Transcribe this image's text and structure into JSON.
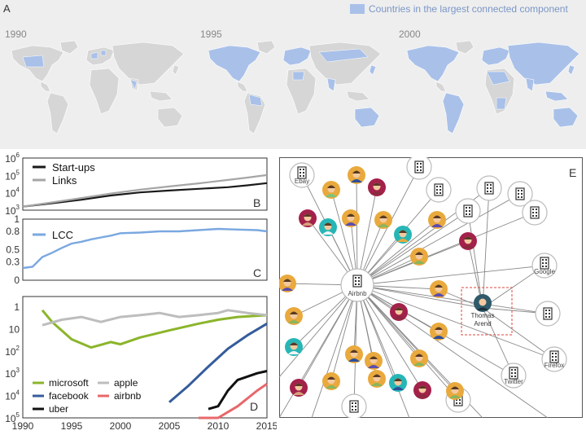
{
  "maps_panel": {
    "panel_label": "A",
    "legend_label": "Countries in the largest connected component",
    "legend_color": "#a9c1e9",
    "years": [
      "1990",
      "1995",
      "2000"
    ],
    "land_color": "#d6d6d6"
  },
  "chart_data": [
    {
      "panel_label": "B",
      "type": "line",
      "scale": "log",
      "ylim_exponents": [
        3,
        6
      ],
      "y_ticks": [
        {
          "mantissa": "10",
          "exp": "6"
        },
        {
          "mantissa": "10",
          "exp": "5"
        },
        {
          "mantissa": "10",
          "exp": "4"
        },
        {
          "mantissa": "10",
          "exp": "3"
        }
      ],
      "series": [
        {
          "name": "Start-ups",
          "color": "#1a1a1a",
          "x": [
            1990,
            1993,
            1996,
            1999,
            2002,
            2005,
            2008,
            2011,
            2013,
            2015
          ],
          "y": [
            1600,
            2500,
            4000,
            7000,
            10500,
            13500,
            17000,
            21000,
            27000,
            36000
          ]
        },
        {
          "name": "Links",
          "color": "#a6a6a6",
          "x": [
            1990,
            1993,
            1996,
            1999,
            2002,
            2005,
            2008,
            2011,
            2013,
            2015
          ],
          "y": [
            1600,
            2800,
            5000,
            9000,
            15000,
            23000,
            35000,
            55000,
            75000,
            105000
          ]
        }
      ]
    },
    {
      "panel_label": "C",
      "type": "line",
      "scale": "linear",
      "ylim": [
        0.0,
        1.0
      ],
      "y_ticks": [
        "1",
        "0.8",
        "0.5",
        "0.3",
        "0"
      ],
      "y_tick_values": [
        1.0,
        0.8,
        0.5,
        0.3,
        0.0
      ],
      "series": [
        {
          "name": "LCC",
          "color": "#7aa8e0",
          "x": [
            1990,
            1991,
            1992,
            1993,
            1994,
            1995,
            1996,
            1997,
            1998,
            1999,
            2000,
            2002,
            2004,
            2006,
            2008,
            2010,
            2012,
            2014,
            2015
          ],
          "y": [
            0.2,
            0.22,
            0.38,
            0.45,
            0.53,
            0.6,
            0.63,
            0.67,
            0.7,
            0.73,
            0.77,
            0.78,
            0.8,
            0.8,
            0.82,
            0.84,
            0.83,
            0.82,
            0.8
          ]
        }
      ]
    },
    {
      "panel_label": "D",
      "type": "line",
      "scale": "log-rank",
      "ylim_exponents": [
        0,
        5
      ],
      "y_ticks": [
        {
          "mantissa": "1",
          "exp": ""
        },
        {
          "mantissa": "10",
          "exp": ""
        },
        {
          "mantissa": "10",
          "exp": "2"
        },
        {
          "mantissa": "10",
          "exp": "3"
        },
        {
          "mantissa": "10",
          "exp": "4"
        },
        {
          "mantissa": "10",
          "exp": "5"
        }
      ],
      "x_ticks": [
        "1990",
        "1995",
        "2000",
        "2005",
        "2010",
        "2015"
      ],
      "xlim": [
        1990,
        2015
      ],
      "series": [
        {
          "name": "microsoft",
          "color": "#8bb52b",
          "x": [
            1992,
            1993,
            1995,
            1997,
            1999,
            2000,
            2002,
            2005,
            2008,
            2010,
            2012,
            2015
          ],
          "y": [
            1.5,
            5.0,
            30,
            70,
            40,
            50,
            25,
            12,
            6,
            4,
            3,
            2.5
          ]
        },
        {
          "name": "apple",
          "color": "#bdbdbd",
          "x": [
            1992,
            1994,
            1996,
            1998,
            2000,
            2002,
            2004,
            2006,
            2008,
            2010,
            2011,
            2013,
            2015
          ],
          "y": [
            7,
            4,
            3,
            5,
            3,
            2.5,
            2.0,
            3,
            2.5,
            2.0,
            1.5,
            2.0,
            2.5
          ]
        },
        {
          "name": "facebook",
          "color": "#355c9c",
          "x": [
            2005,
            2007,
            2009,
            2011,
            2013,
            2015
          ],
          "y": [
            20000,
            3500,
            500,
            80,
            20,
            6
          ]
        },
        {
          "name": "airbnb",
          "color": "#e8676a",
          "x": [
            2008,
            2010,
            2012,
            2014,
            2015
          ],
          "y": [
            300000,
            120000,
            30000,
            6000,
            3000
          ]
        },
        {
          "name": "uber",
          "color": "#111111",
          "x": [
            2009,
            2010,
            2011,
            2012,
            2014,
            2015
          ],
          "y": [
            40000,
            30000,
            6000,
            2000,
            1000,
            800
          ]
        }
      ]
    }
  ],
  "network": {
    "panel_label": "E",
    "hub_label": "Airbnb",
    "highlight_label": "Thomas\nArend",
    "highlight_label_lines": [
      "Thomas",
      "Arend"
    ],
    "company_labels": {
      "ebay": "Ebay",
      "google": "Google",
      "firefox": "Firefox",
      "twitter": "Twitter"
    },
    "highlight_color": "#e0463c"
  }
}
